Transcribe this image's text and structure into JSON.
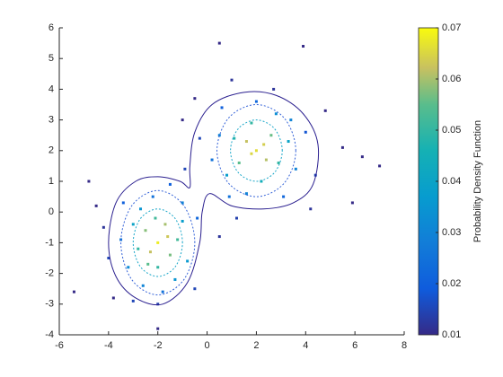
{
  "chart_data": {
    "type": "scatter",
    "colorbar_label": "Probability Density Function",
    "colormap": "parula",
    "clim": [
      0.01,
      0.07
    ],
    "cticks": [
      0.01,
      0.02,
      0.03,
      0.04,
      0.05,
      0.06,
      0.07
    ],
    "xlim": [
      -6,
      8
    ],
    "xticks": [
      -6,
      -4,
      -2,
      0,
      2,
      4,
      6,
      8
    ],
    "ylim": [
      -4,
      6
    ],
    "yticks": [
      -4,
      -3,
      -2,
      -1,
      0,
      1,
      2,
      3,
      4,
      5,
      6
    ],
    "x": [
      -2,
      -1.6,
      -2.3,
      -2.5,
      -1.5,
      -2.8,
      -1.2,
      -2.1,
      -2,
      -3,
      -1,
      -3.2,
      -1.3,
      -2.6,
      -0.8,
      -3.5,
      -2.2,
      -1,
      -3.4,
      -4,
      -2,
      -0.5,
      -4.5,
      -3.8,
      -1.5,
      -5.4,
      -2,
      -0.4,
      -4.2,
      -3,
      -1.8,
      -2.7,
      -1.7,
      -2.4,
      0.5,
      -4.8,
      2,
      1.6,
      2.4,
      2.6,
      1.3,
      2.9,
      1.8,
      1.1,
      2.2,
      3.3,
      0.8,
      2.8,
      0.5,
      3.6,
      1.6,
      0.2,
      3.1,
      2,
      4,
      0.6,
      -0.3,
      4.4,
      1.2,
      2.7,
      5.5,
      6.3,
      7,
      -0.5,
      3.9,
      0.5,
      4.2,
      1,
      -1,
      1.8,
      2.3,
      3.4,
      0.9,
      4.8,
      5.9,
      -0.9
    ],
    "y": [
      -1,
      -0.8,
      -1.3,
      -0.6,
      -1.4,
      -1.2,
      -0.9,
      -0.2,
      -1.8,
      -0.4,
      -0.3,
      -1.8,
      -2.2,
      -2.4,
      -1.6,
      -0.9,
      0.5,
      0.3,
      0.3,
      -1.5,
      -3,
      -2.5,
      0.2,
      -2.8,
      0.9,
      -2.6,
      -3.8,
      -0.2,
      -0.5,
      -2.9,
      -2.6,
      0.1,
      -0.4,
      -1.7,
      -0.8,
      1,
      2,
      2.3,
      1.7,
      2.5,
      1.6,
      1.6,
      2.9,
      2.4,
      1,
      2.3,
      1.2,
      3.2,
      2.5,
      1.4,
      0.6,
      1.7,
      0.5,
      3.6,
      2.6,
      3.4,
      2.4,
      1.2,
      -0.2,
      4,
      2.1,
      1.8,
      1.5,
      3.7,
      5.4,
      5.5,
      0.1,
      4.3,
      3,
      1.9,
      2.2,
      3,
      0.5,
      3.3,
      0.3,
      1.4
    ],
    "density": [
      0.068,
      0.063,
      0.062,
      0.058,
      0.057,
      0.05,
      0.052,
      0.052,
      0.05,
      0.04,
      0.038,
      0.032,
      0.035,
      0.03,
      0.036,
      0.027,
      0.025,
      0.03,
      0.02,
      0.015,
      0.014,
      0.015,
      0.01,
      0.01,
      0.02,
      0.01,
      0.01,
      0.022,
      0.012,
      0.015,
      0.025,
      0.035,
      0.06,
      0.055,
      0.012,
      0.01,
      0.066,
      0.062,
      0.061,
      0.056,
      0.055,
      0.05,
      0.05,
      0.048,
      0.045,
      0.04,
      0.038,
      0.033,
      0.03,
      0.03,
      0.03,
      0.025,
      0.022,
      0.022,
      0.018,
      0.02,
      0.015,
      0.015,
      0.014,
      0.012,
      0.01,
      0.01,
      0.01,
      0.01,
      0.01,
      0.01,
      0.012,
      0.012,
      0.01,
      0.065,
      0.064,
      0.03,
      0.025,
      0.01,
      0.01,
      0.015
    ],
    "contours": [
      {
        "color": "#2a1f8f",
        "x": [
          -4,
          -3.7,
          -2.9,
          -2,
          -1.1,
          -0.7,
          -0.7,
          -0.5,
          0.2,
          1.5,
          2.8,
          3.9,
          4.5,
          4.3,
          3.5,
          2.3,
          1,
          0.1,
          -0.2,
          -0.3,
          -0.8,
          -1.8,
          -2.9,
          -3.7
        ],
        "y": [
          -1,
          0.3,
          1,
          1.15,
          1,
          0.8,
          1.5,
          2.6,
          3.5,
          3.9,
          3.8,
          3.2,
          2.2,
          0.9,
          0.3,
          0.1,
          0.2,
          0.6,
          0,
          -1,
          -2.3,
          -3,
          -2.8,
          -2.1
        ]
      },
      {
        "color": "#3563d8",
        "x": [
          -0.5,
          -0.94,
          -2,
          -3.06,
          -3.5,
          -3.06,
          -2,
          -0.94
        ],
        "y": [
          -1,
          0.2,
          0.7,
          0.2,
          -1,
          -2.2,
          -2.7,
          -2.2
        ]
      },
      {
        "color": "#1aa7c9",
        "x": [
          -1,
          -1.29,
          -2,
          -2.71,
          -3,
          -2.71,
          -2,
          -1.29
        ],
        "y": [
          -1,
          -0.22,
          0.1,
          -0.22,
          -1,
          -1.78,
          -2.1,
          -1.78
        ]
      },
      {
        "color": "#3563d8",
        "x": [
          3.6,
          3.13,
          2,
          0.87,
          0.4,
          0.87,
          2,
          3.13
        ],
        "y": [
          2,
          3.06,
          3.5,
          3.06,
          2,
          0.94,
          0.5,
          0.94
        ]
      },
      {
        "color": "#1aa7c9",
        "x": [
          3.05,
          2.74,
          2,
          1.26,
          0.95,
          1.26,
          2,
          2.74
        ],
        "y": [
          2,
          2.71,
          3,
          2.71,
          2,
          1.29,
          1,
          1.29
        ]
      }
    ]
  }
}
